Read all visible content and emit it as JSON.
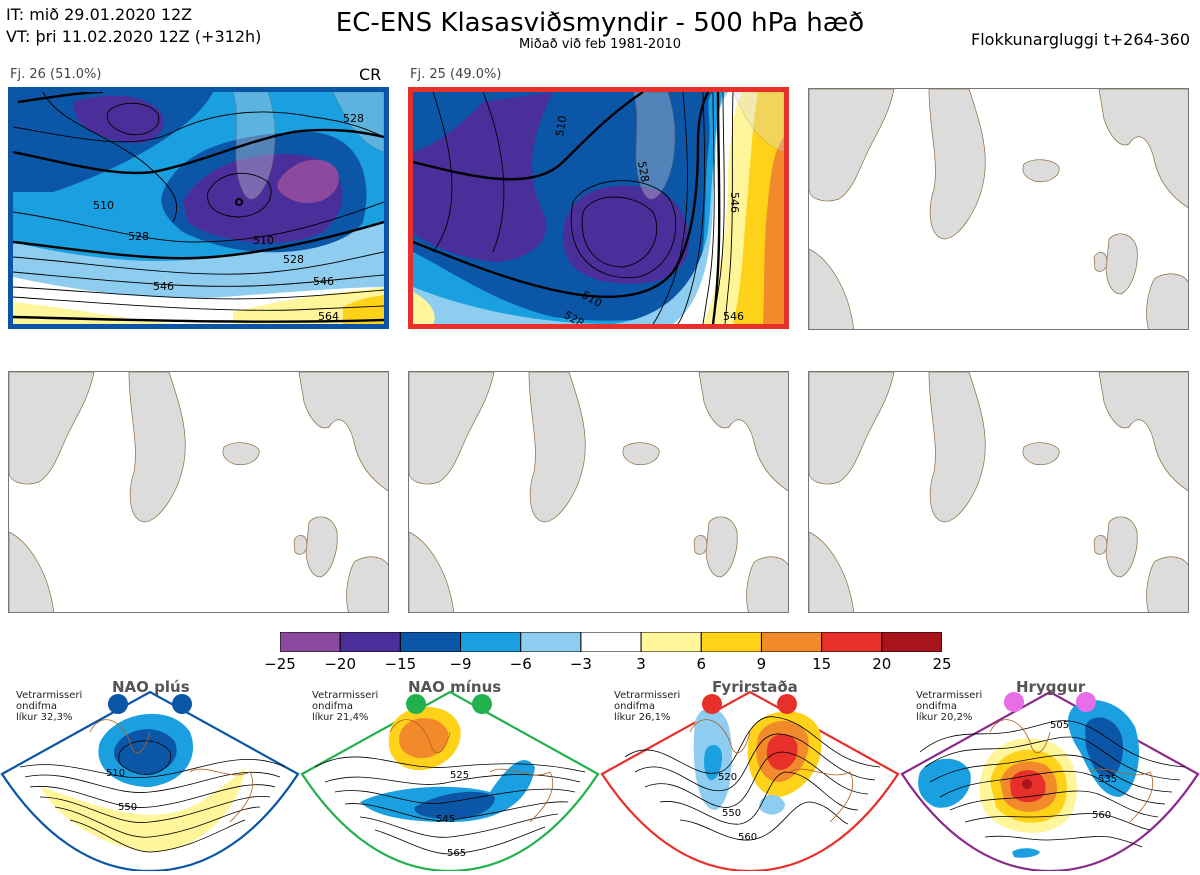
{
  "header": {
    "it_line": "IT: mið 29.01.2020 12Z",
    "vt_line": "VT: þri 11.02.2020 12Z  (+312h)",
    "title": "EC-ENS Klasasviðsmyndir - 500 hPa hæð",
    "subtitle": "Miðað við feb 1981-2010",
    "window": "Flokkunargluggi t+264-360"
  },
  "clusters": [
    {
      "label": "Fj. 26 (51.0%)",
      "tag": "CR",
      "contours": [
        "510",
        "528",
        "510",
        "528",
        "546",
        "564",
        "528",
        "546"
      ]
    },
    {
      "label": "Fj. 25 (49.0%)",
      "contours": [
        "510",
        "528",
        "510",
        "528",
        "546",
        "546"
      ]
    }
  ],
  "colorbar": {
    "ticks": [
      "−25",
      "−20",
      "−15",
      "−9",
      "−6",
      "−3",
      "3",
      "6",
      "9",
      "15",
      "20",
      "25"
    ],
    "colors": [
      "#8c4a9e",
      "#4a2f9a",
      "#0c56a8",
      "#1a9fe0",
      "#8ecdf0",
      "#ffffff",
      "#fff59a",
      "#ffd21a",
      "#f28a2c",
      "#e8302a",
      "#a8141c"
    ]
  },
  "regimes": [
    {
      "title": "NAO plús",
      "note": [
        "Vetrarmisseri",
        "ondifma",
        "líkur 32,3%"
      ],
      "labels": [
        "510",
        "550"
      ],
      "dot": "#0a55a6",
      "frame": "#0a55a6"
    },
    {
      "title": "NAO mínus",
      "note": [
        "Vetrarmisseri",
        "ondifma",
        "líkur 21,4%"
      ],
      "labels": [
        "525",
        "545",
        "565"
      ],
      "dot": "#22b14c",
      "frame": "#22b14c"
    },
    {
      "title": "Fyrirstaða",
      "note": [
        "Vetrarmisseri",
        "ondifma",
        "líkur 26,1%"
      ],
      "labels": [
        "520",
        "550",
        "560"
      ],
      "dot": "#e8302a",
      "frame": "#e8302a"
    },
    {
      "title": "Hryggur",
      "note": [
        "Vetrarmisseri",
        "ondifma",
        "líkur 20,2%"
      ],
      "labels": [
        "505",
        "535",
        "560"
      ],
      "dot": "#e86de8",
      "frame": "#8a2a8a"
    }
  ]
}
